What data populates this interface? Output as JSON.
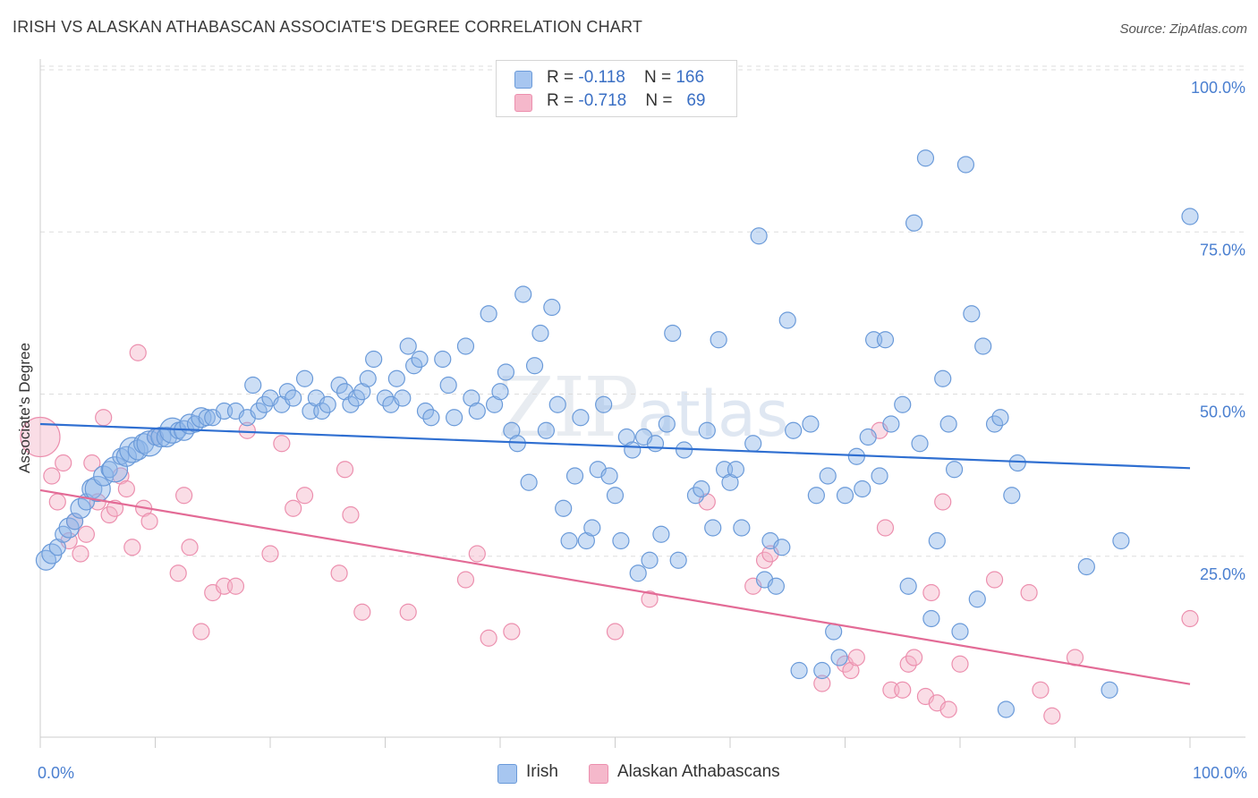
{
  "title": "IRISH VS ALASKAN ATHABASCAN ASSOCIATE'S DEGREE CORRELATION CHART",
  "source": "Source: ZipAtlas.com",
  "watermark": {
    "main": "ZIP",
    "light": "atlas"
  },
  "legend": {
    "rows": [
      {
        "r_label": "R = ",
        "r_value": "-0.118",
        "n_label": "N = ",
        "n_value": "166",
        "color": "#a7c6f0"
      },
      {
        "r_label": "R = ",
        "r_value": "-0.718",
        "n_label": "N = ",
        "n_value": "69",
        "color": "#f5b8cb"
      }
    ]
  },
  "chart_data": {
    "type": "scatter",
    "title": "IRISH VS ALASKAN ATHABASCAN ASSOCIATE'S DEGREE CORRELATION CHART",
    "xlabel": "",
    "ylabel": "Associate's Degree",
    "xlim": [
      0,
      100
    ],
    "ylim": [
      0,
      100
    ],
    "x_tick_labels": [
      "0.0%",
      "100.0%"
    ],
    "y_tick_labels": [
      {
        "value": 100,
        "label": "100.0%"
      },
      {
        "value": 75,
        "label": "75.0%"
      },
      {
        "value": 50,
        "label": "50.0%"
      },
      {
        "value": 25,
        "label": "25.0%"
      }
    ],
    "grid": true,
    "legend_position": "bottom",
    "series": [
      {
        "name": "Irish",
        "color": "#8fb5e8",
        "stroke": "#6a9ad9",
        "line_color": "#2f6fd1",
        "trend": {
          "x": [
            0,
            100
          ],
          "y": [
            48.0,
            41.2
          ]
        },
        "points": [
          [
            0.5,
            27,
            2
          ],
          [
            1,
            28,
            2
          ],
          [
            1.5,
            29,
            1
          ],
          [
            2,
            31,
            1
          ],
          [
            2.5,
            32,
            2
          ],
          [
            3,
            33,
            1
          ],
          [
            3.5,
            35,
            2
          ],
          [
            4,
            36,
            1
          ],
          [
            4.5,
            38,
            2
          ],
          [
            5,
            38,
            3
          ],
          [
            5.5,
            40,
            2
          ],
          [
            6,
            41,
            1
          ],
          [
            6.5,
            41,
            3
          ],
          [
            7,
            43,
            1
          ],
          [
            7.5,
            43,
            2
          ],
          [
            8,
            44,
            3
          ],
          [
            8.5,
            44,
            2
          ],
          [
            9,
            45,
            2
          ],
          [
            9.5,
            45,
            3
          ],
          [
            10,
            46,
            1
          ],
          [
            10.5,
            46,
            2
          ],
          [
            11,
            46,
            2
          ],
          [
            11.5,
            47,
            3
          ],
          [
            12,
            47,
            1
          ],
          [
            12.5,
            47,
            2
          ],
          [
            13,
            48,
            2
          ],
          [
            13.5,
            48,
            1
          ],
          [
            14,
            49,
            2
          ],
          [
            14.5,
            49,
            1
          ],
          [
            15,
            49,
            1
          ],
          [
            16,
            50,
            1
          ],
          [
            17,
            50,
            1
          ],
          [
            18,
            49,
            1
          ],
          [
            18.5,
            54,
            1
          ],
          [
            19,
            50,
            1
          ],
          [
            19.5,
            51,
            1
          ],
          [
            20,
            52,
            1
          ],
          [
            21,
            51,
            1
          ],
          [
            21.5,
            53,
            1
          ],
          [
            22,
            52,
            1
          ],
          [
            23,
            55,
            1
          ],
          [
            23.5,
            50,
            1
          ],
          [
            24,
            52,
            1
          ],
          [
            24.5,
            50,
            1
          ],
          [
            25,
            51,
            1
          ],
          [
            26,
            54,
            1
          ],
          [
            26.5,
            53,
            1
          ],
          [
            27,
            51,
            1
          ],
          [
            27.5,
            52,
            1
          ],
          [
            28,
            53,
            1
          ],
          [
            28.5,
            55,
            1
          ],
          [
            29,
            58,
            1
          ],
          [
            30,
            52,
            1
          ],
          [
            30.5,
            51,
            1
          ],
          [
            31,
            55,
            1
          ],
          [
            31.5,
            52,
            1
          ],
          [
            32,
            60,
            1
          ],
          [
            32.5,
            57,
            1
          ],
          [
            33,
            58,
            1
          ],
          [
            33.5,
            50,
            1
          ],
          [
            34,
            49,
            1
          ],
          [
            35,
            58,
            1
          ],
          [
            35.5,
            54,
            1
          ],
          [
            36,
            49,
            1
          ],
          [
            37,
            60,
            1
          ],
          [
            37.5,
            52,
            1
          ],
          [
            38,
            50,
            1
          ],
          [
            39,
            65,
            1
          ],
          [
            39.5,
            51,
            1
          ],
          [
            40,
            53,
            1
          ],
          [
            40.5,
            56,
            1
          ],
          [
            41,
            47,
            1
          ],
          [
            41.5,
            45,
            1
          ],
          [
            42,
            68,
            1
          ],
          [
            42.5,
            39,
            1
          ],
          [
            43,
            57,
            1
          ],
          [
            43.5,
            62,
            1
          ],
          [
            44,
            47,
            1
          ],
          [
            44.5,
            66,
            1
          ],
          [
            45,
            51,
            1
          ],
          [
            45.5,
            35,
            1
          ],
          [
            46,
            30,
            1
          ],
          [
            46.5,
            40,
            1
          ],
          [
            47,
            49,
            1
          ],
          [
            47.5,
            30,
            1
          ],
          [
            48,
            32,
            1
          ],
          [
            48.5,
            41,
            1
          ],
          [
            49,
            51,
            1
          ],
          [
            49.5,
            40,
            1
          ],
          [
            50,
            37,
            1
          ],
          [
            50.5,
            30,
            1
          ],
          [
            51,
            46,
            1
          ],
          [
            51.5,
            44,
            1
          ],
          [
            52,
            25,
            1
          ],
          [
            52.5,
            46,
            1
          ],
          [
            53,
            27,
            1
          ],
          [
            53.5,
            45,
            1
          ],
          [
            54,
            31,
            1
          ],
          [
            54.5,
            48,
            1
          ],
          [
            55,
            62,
            1
          ],
          [
            55.5,
            27,
            1
          ],
          [
            56,
            44,
            1
          ],
          [
            57,
            37,
            1
          ],
          [
            57.5,
            38,
            1
          ],
          [
            58,
            47,
            1
          ],
          [
            58.5,
            32,
            1
          ],
          [
            59,
            61,
            1
          ],
          [
            59.5,
            41,
            1
          ],
          [
            60,
            39,
            1
          ],
          [
            60.5,
            41,
            1
          ],
          [
            61,
            32,
            1
          ],
          [
            62,
            45,
            1
          ],
          [
            62.5,
            77,
            1
          ],
          [
            63,
            24,
            1
          ],
          [
            63.5,
            30,
            1
          ],
          [
            64,
            23,
            1
          ],
          [
            64.5,
            29,
            1
          ],
          [
            65,
            64,
            1
          ],
          [
            65.5,
            47,
            1
          ],
          [
            66,
            10,
            1
          ],
          [
            67,
            48,
            1
          ],
          [
            67.5,
            37,
            1
          ],
          [
            68,
            10,
            1
          ],
          [
            68.5,
            40,
            1
          ],
          [
            69,
            16,
            1
          ],
          [
            69.5,
            12,
            1
          ],
          [
            70,
            37,
            1
          ],
          [
            71,
            43,
            1
          ],
          [
            71.5,
            38,
            1
          ],
          [
            72,
            46,
            1
          ],
          [
            72.5,
            61,
            1
          ],
          [
            73,
            40,
            1
          ],
          [
            73.5,
            61,
            1
          ],
          [
            74,
            48,
            1
          ],
          [
            75,
            51,
            1
          ],
          [
            75.5,
            23,
            1
          ],
          [
            76,
            79,
            1
          ],
          [
            76.5,
            45,
            1
          ],
          [
            77,
            89,
            1
          ],
          [
            77.5,
            18,
            1
          ],
          [
            78,
            30,
            1
          ],
          [
            78.5,
            55,
            1
          ],
          [
            79,
            48,
            1
          ],
          [
            79.5,
            41,
            1
          ],
          [
            80,
            16,
            1
          ],
          [
            80.5,
            88,
            1
          ],
          [
            81,
            65,
            1
          ],
          [
            81.5,
            21,
            1
          ],
          [
            82,
            60,
            1
          ],
          [
            83,
            48,
            1
          ],
          [
            83.5,
            49,
            1
          ],
          [
            84,
            4,
            1
          ],
          [
            84.5,
            37,
            1
          ],
          [
            85,
            42,
            1
          ],
          [
            91,
            26,
            1
          ],
          [
            93,
            7,
            1
          ],
          [
            94,
            30,
            1
          ],
          [
            100,
            80,
            1
          ]
        ]
      },
      {
        "name": "Alaskan Athabascans",
        "color": "#f5b3c7",
        "stroke": "#ec8fae",
        "line_color": "#e36b96",
        "trend": {
          "x": [
            0,
            100
          ],
          "y": [
            37.8,
            7.9
          ]
        },
        "points": [
          [
            0,
            46,
            4
          ],
          [
            1,
            40,
            1
          ],
          [
            1.5,
            36,
            1
          ],
          [
            2,
            42,
            1
          ],
          [
            2.5,
            30,
            1
          ],
          [
            3,
            33,
            1
          ],
          [
            3.5,
            28,
            1
          ],
          [
            4,
            31,
            1
          ],
          [
            4.5,
            42,
            1
          ],
          [
            5,
            36,
            1
          ],
          [
            5.5,
            49,
            1
          ],
          [
            6,
            34,
            1
          ],
          [
            6.5,
            35,
            1
          ],
          [
            7,
            40,
            1
          ],
          [
            7.5,
            38,
            1
          ],
          [
            8,
            29,
            1
          ],
          [
            8.5,
            59,
            1
          ],
          [
            9,
            35,
            1
          ],
          [
            9.5,
            33,
            1
          ],
          [
            10,
            46,
            1
          ],
          [
            12,
            25,
            1
          ],
          [
            12.5,
            37,
            1
          ],
          [
            13,
            29,
            1
          ],
          [
            14,
            16,
            1
          ],
          [
            15,
            22,
            1
          ],
          [
            16,
            23,
            1
          ],
          [
            17,
            23,
            1
          ],
          [
            18,
            47,
            1
          ],
          [
            20,
            28,
            1
          ],
          [
            21,
            45,
            1
          ],
          [
            22,
            35,
            1
          ],
          [
            23,
            37,
            1
          ],
          [
            26,
            25,
            1
          ],
          [
            26.5,
            41,
            1
          ],
          [
            27,
            34,
            1
          ],
          [
            28,
            19,
            1
          ],
          [
            32,
            19,
            1
          ],
          [
            37,
            24,
            1
          ],
          [
            38,
            28,
            1
          ],
          [
            39,
            15,
            1
          ],
          [
            41,
            16,
            1
          ],
          [
            50,
            16,
            1
          ],
          [
            53,
            21,
            1
          ],
          [
            58,
            36,
            1
          ],
          [
            62,
            23,
            1
          ],
          [
            63,
            27,
            1
          ],
          [
            63.5,
            28,
            1
          ],
          [
            68,
            8,
            1
          ],
          [
            70,
            11,
            1
          ],
          [
            70.5,
            10,
            1
          ],
          [
            71,
            12,
            1
          ],
          [
            73,
            47,
            1
          ],
          [
            73.5,
            32,
            1
          ],
          [
            74,
            7,
            1
          ],
          [
            75,
            7,
            1
          ],
          [
            75.5,
            11,
            1
          ],
          [
            76,
            12,
            1
          ],
          [
            77,
            6,
            1
          ],
          [
            77.5,
            22,
            1
          ],
          [
            78,
            5,
            1
          ],
          [
            78.5,
            36,
            1
          ],
          [
            79,
            4,
            1
          ],
          [
            80,
            11,
            1
          ],
          [
            83,
            24,
            1
          ],
          [
            86,
            22,
            1
          ],
          [
            87,
            7,
            1
          ],
          [
            88,
            3,
            1
          ],
          [
            90,
            12,
            1
          ],
          [
            100,
            18,
            1
          ]
        ]
      }
    ]
  },
  "bottom_legend": [
    {
      "label": "Irish",
      "color": "#a7c6f0"
    },
    {
      "label": "Alaskan Athabascans",
      "color": "#f5b8cb"
    }
  ],
  "axis_label_color": "#4a7fd0",
  "grid_color": "#dddddd"
}
